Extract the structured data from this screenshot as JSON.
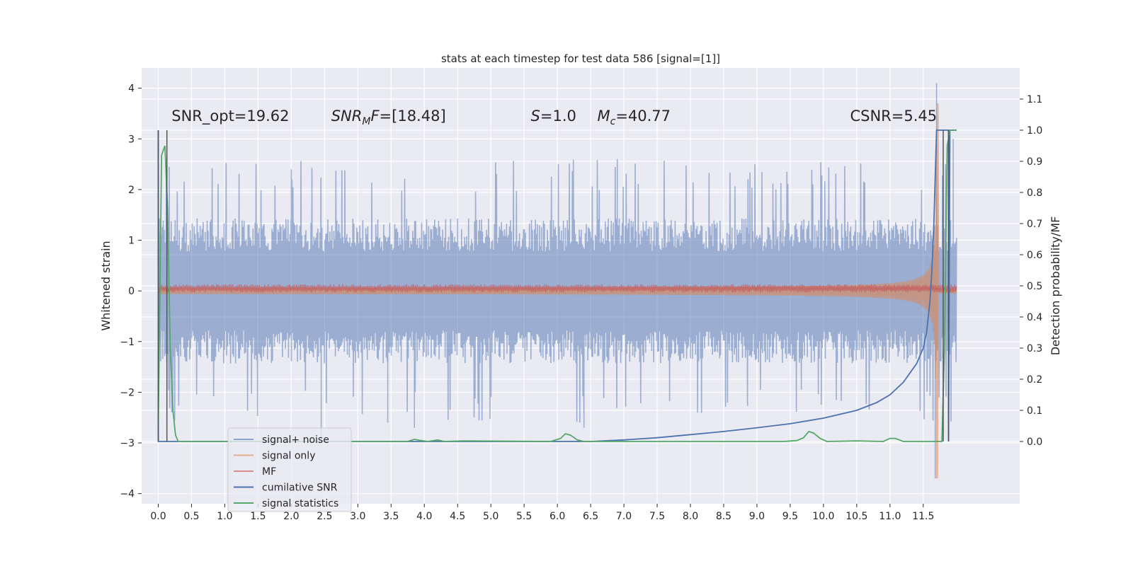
{
  "chart_data": {
    "type": "line",
    "title": "stats at each timestep for test data 586 [signal=[1]]",
    "ylabel": "Whitened strain",
    "ylabel_right": "Detection probability/MF",
    "xlim": [
      -0.25,
      12.95
    ],
    "ylim": [
      -4.2,
      4.4
    ],
    "ylim_right": [
      -0.2,
      1.2
    ],
    "x_ticks": [
      0.0,
      0.5,
      1.0,
      1.5,
      2.0,
      2.5,
      3.0,
      3.5,
      4.0,
      4.5,
      5.0,
      5.5,
      6.0,
      6.5,
      7.0,
      7.5,
      8.0,
      8.5,
      9.0,
      9.5,
      10.0,
      10.5,
      11.0,
      11.5
    ],
    "x_tick_labels": [
      "0.0",
      "0.5",
      "1.0",
      "1.5",
      "2.0",
      "2.5",
      "3.0",
      "3.5",
      "4.0",
      "4.5",
      "5.0",
      "5.5",
      "6.0",
      "6.5",
      "7.0",
      "7.5",
      "8.0",
      "8.5",
      "9.0",
      "9.5",
      "10.0",
      "10.5",
      "11.0",
      "11.5"
    ],
    "y_ticks": [
      -4,
      -3,
      -2,
      -1,
      0,
      1,
      2,
      3,
      4
    ],
    "y_tick_labels": [
      "−4",
      "−3",
      "−2",
      "−1",
      "0",
      "1",
      "2",
      "3",
      "4"
    ],
    "y_right_ticks": [
      0.0,
      0.1,
      0.2,
      0.3,
      0.4,
      0.5,
      0.6,
      0.7,
      0.8,
      0.9,
      1.0,
      1.1
    ],
    "y_right_tick_labels": [
      "0.0",
      "0.1",
      "0.2",
      "0.3",
      "0.4",
      "0.5",
      "0.6",
      "0.7",
      "0.8",
      "0.9",
      "1.0",
      "1.1"
    ],
    "grid": true,
    "legend_position": "lower-left",
    "annotations": [
      {
        "text": "SNR_opt=19.62",
        "x": 0.2
      },
      {
        "text": "SNR",
        "sub": "M",
        "rest": "F=[18.48]",
        "x": 2.6
      },
      {
        "text": "S",
        "rest": "=1.0",
        "x": 5.6
      },
      {
        "text": "M",
        "sub": "c",
        "rest": "=40.77",
        "x": 6.6
      },
      {
        "text": "CSNR=5.45",
        "x": 10.4
      }
    ],
    "annotation_y": 3.35,
    "series": [
      {
        "name": "signal+ noise",
        "color": "#4c72b0",
        "opacity": 0.5,
        "axis": "left",
        "kind": "noise",
        "x_range": [
          0.0,
          12.0
        ],
        "amplitude_typical": 1.3,
        "amplitude_max": 2.6,
        "spike_points": [
          [
            2.0,
            2.4
          ],
          [
            2.45,
            -2.9
          ],
          [
            3.45,
            -2.6
          ],
          [
            3.85,
            -2.7
          ],
          [
            6.4,
            -2.7
          ],
          [
            6.9,
            2.6
          ],
          [
            11.7,
            4.1
          ],
          [
            11.68,
            -3.7
          ],
          [
            11.95,
            3.0
          ]
        ]
      },
      {
        "name": "signal only",
        "color": "#dd8452",
        "opacity": 0.6,
        "axis": "left",
        "kind": "chirp",
        "x_range": [
          0.0,
          12.0
        ],
        "base_amplitude": 0.05,
        "peak_time": 11.7,
        "peak_amplitude": 3.7
      },
      {
        "name": "MF",
        "color": "#c44e52",
        "opacity": 0.6,
        "axis": "left",
        "kind": "band",
        "x_range": [
          0.0,
          12.0
        ],
        "center": 0.05,
        "amplitude": 0.08
      },
      {
        "name": "cumilative SNR",
        "color": "#4c72b0",
        "axis": "right",
        "x": [
          0.0,
          0.001,
          6.5,
          7.0,
          7.5,
          8.0,
          8.5,
          9.0,
          9.5,
          10.0,
          10.5,
          10.8,
          11.0,
          11.2,
          11.4,
          11.5,
          11.55,
          11.6,
          11.63,
          11.66,
          11.68,
          11.7,
          11.75,
          11.8,
          11.85,
          11.88,
          11.88,
          11.9,
          12.0
        ],
        "y": [
          1.0,
          0.0,
          0.0,
          0.005,
          0.012,
          0.022,
          0.032,
          0.044,
          0.057,
          0.075,
          0.1,
          0.125,
          0.15,
          0.19,
          0.25,
          0.3,
          0.35,
          0.45,
          0.55,
          0.7,
          0.85,
          1.0,
          1.0,
          1.0,
          1.0,
          1.0,
          0.0,
          1.0,
          1.0
        ]
      },
      {
        "name": "signal statistics",
        "color": "#55a868",
        "axis": "right",
        "x": [
          0.0,
          0.05,
          0.1,
          0.14,
          0.18,
          0.22,
          0.26,
          0.3,
          0.35,
          3.75,
          3.85,
          3.95,
          4.05,
          4.2,
          4.3,
          4.6,
          5.9,
          6.05,
          6.12,
          6.2,
          6.3,
          6.4,
          9.4,
          9.6,
          9.7,
          9.78,
          9.85,
          9.95,
          10.05,
          10.5,
          10.9,
          11.0,
          11.08,
          11.2,
          11.6,
          11.78,
          11.82,
          11.86,
          11.9,
          12.0
        ],
        "y": [
          0.05,
          0.92,
          0.95,
          0.75,
          0.3,
          0.1,
          0.02,
          0.0,
          0.0,
          0.0,
          0.007,
          0.003,
          0.0,
          0.005,
          0.0,
          0.002,
          0.0,
          0.01,
          0.025,
          0.02,
          0.005,
          0.0,
          0.0,
          0.003,
          0.012,
          0.032,
          0.027,
          0.01,
          0.0,
          0.002,
          0.0,
          0.01,
          0.01,
          0.0,
          0.0,
          0.0,
          0.3,
          0.95,
          1.0,
          1.0
        ]
      }
    ],
    "vertical_lines": [
      {
        "x": 0.0,
        "color": "#555555",
        "y0": 0.0,
        "y1": 1.0
      },
      {
        "x": 0.13,
        "color": "#555555",
        "y0": 0.0,
        "y1": 1.0
      },
      {
        "x": 11.8,
        "color": "#555555",
        "y0": 0.0,
        "y1": 1.0
      },
      {
        "x": 11.88,
        "color": "#555555",
        "y0": 0.0,
        "y1": 1.0
      }
    ]
  }
}
